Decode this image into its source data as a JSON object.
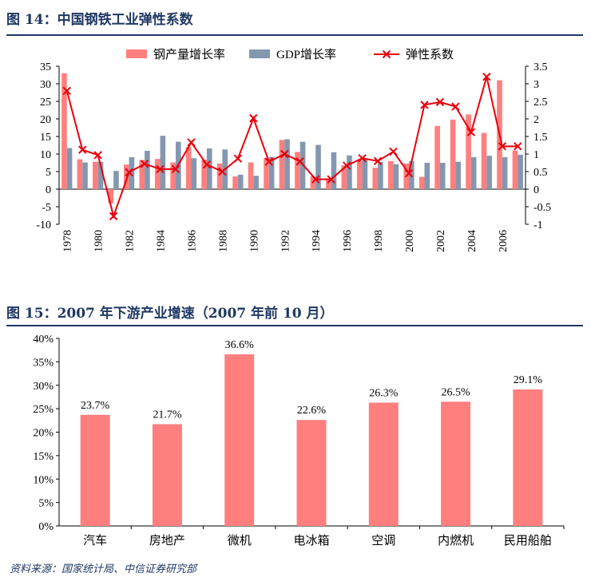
{
  "figure1": {
    "title": "图 14：中国钢铁工业弹性系数"
  },
  "figure2": {
    "title": "图 15：2007 年下游产业增速（2007 年前 10 月）"
  },
  "source": "资料来源：国家统计局、中信证券研究部",
  "colors": {
    "steel": "#ff7f7f",
    "gdp": "#8497b0",
    "elastic": "#e8000b",
    "title": "#1f3864"
  },
  "chart_data": [
    {
      "type": "bar+line",
      "title": "中国钢铁工业弹性系数",
      "legend": [
        "钢产量增长率",
        "GDP增长率",
        "弹性系数"
      ],
      "legend_position": "top",
      "x": [
        1978,
        1979,
        1980,
        1981,
        1982,
        1983,
        1984,
        1985,
        1986,
        1987,
        1988,
        1989,
        1990,
        1991,
        1992,
        1993,
        1994,
        1995,
        1996,
        1997,
        1998,
        1999,
        2000,
        2001,
        2002,
        2003,
        2004,
        2005,
        2006,
        2007
      ],
      "x_tick_labels": [
        "1978",
        "1980",
        "1982",
        "1984",
        "1986",
        "1988",
        "1990",
        "1992",
        "1994",
        "1996",
        "1998",
        "2000",
        "2002",
        "2004",
        "2006"
      ],
      "series": [
        {
          "name": "钢产量增长率",
          "axis": "left",
          "kind": "bar",
          "values": [
            33,
            8.5,
            7.8,
            -4,
            7,
            8.3,
            8.6,
            7.6,
            12,
            8.4,
            7.3,
            3.6,
            7.6,
            8.9,
            14,
            10.6,
            3.6,
            3,
            6.8,
            8,
            6.1,
            8,
            7.3,
            3.5,
            18,
            19.8,
            21.3,
            16,
            31,
            11
          ]
        },
        {
          "name": "GDP增长率",
          "axis": "left",
          "kind": "bar",
          "values": [
            11.7,
            7.6,
            7.8,
            5.2,
            9.1,
            10.9,
            15.2,
            13.5,
            8.8,
            11.6,
            11.3,
            4.1,
            3.8,
            9.2,
            14.2,
            13.5,
            12.6,
            10.5,
            9.6,
            8.8,
            7.8,
            7.1,
            8,
            7.5,
            7.5,
            7.8,
            9.1,
            9.5,
            9.1,
            9.8
          ]
        },
        {
          "name": "弹性系数",
          "axis": "right",
          "kind": "line",
          "values": [
            2.8,
            1.12,
            0.97,
            -0.77,
            0.48,
            0.72,
            0.57,
            0.57,
            1.33,
            0.7,
            0.5,
            0.87,
            2.02,
            0.78,
            1.0,
            0.79,
            0.28,
            0.28,
            0.67,
            0.88,
            0.8,
            1.07,
            0.45,
            2.4,
            2.48,
            2.35,
            1.62,
            3.2,
            1.22,
            1.22
          ]
        }
      ],
      "ylim_left": [
        -10,
        35
      ],
      "yticks_left": [
        "-10",
        "-5",
        "0",
        "5",
        "10",
        "15",
        "20",
        "25",
        "30",
        "35"
      ],
      "ylim_right": [
        -1,
        3.5
      ],
      "yticks_right": [
        "-1",
        "-0.5",
        "0",
        "0.5",
        "1",
        "1.5",
        "2",
        "2.5",
        "3",
        "3.5"
      ],
      "grid": false
    },
    {
      "type": "bar",
      "title": "2007 年下游产业增速（2007 年前 10 月）",
      "categories": [
        "汽车",
        "房地产",
        "微机",
        "电冰箱",
        "空调",
        "内燃机",
        "民用船舶"
      ],
      "values": [
        23.7,
        21.7,
        36.6,
        22.6,
        26.3,
        26.5,
        29.1
      ],
      "data_labels": [
        "23.7%",
        "21.7%",
        "36.6%",
        "22.6%",
        "26.3%",
        "26.5%",
        "29.1%"
      ],
      "ylim": [
        0,
        40
      ],
      "yticks": [
        "0%",
        "5%",
        "10%",
        "15%",
        "20%",
        "25%",
        "30%",
        "35%",
        "40%"
      ],
      "grid": false
    }
  ]
}
